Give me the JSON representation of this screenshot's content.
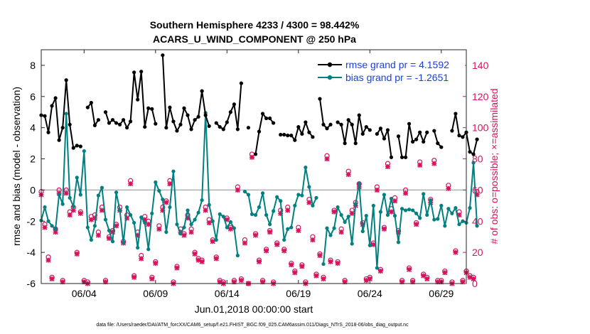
{
  "chart_data": {
    "type": "line",
    "title_line1": "Southern Hemisphere 4233 / 4300 = 98.442%",
    "title_line2": "ACARS_U_WIND_COMPONENT @ 250 hPa",
    "xlabel": "Jun.01,2018 00:00:00 start",
    "ylabel_left": "rmse and bias (model - observation)",
    "ylabel_right": "# of obs: o=possible; ×=assimilated",
    "footnote": "data file: /Users/raeder/DAI/ATM_forcXX/CAM6_setup/f.e21.FHIST_BGC.f09_025.CAM6assim.011/Diags_NTrS_2018-06/obs_diag_output.nc",
    "xlim": [
      1.0,
      30.75
    ],
    "ylim_left": [
      -6,
      9
    ],
    "ylim_right": [
      0,
      150
    ],
    "x_ticks": [
      4,
      9,
      14,
      19,
      24,
      29
    ],
    "x_tick_labels": [
      "06/04",
      "06/09",
      "06/14",
      "06/19",
      "06/24",
      "06/29"
    ],
    "y_ticks_left": [
      -6,
      -4,
      -2,
      0,
      2,
      4,
      6,
      8
    ],
    "y_tick_labels_left": [
      "-6",
      "-4",
      "-2",
      "0",
      "2",
      "4",
      "6",
      "8"
    ],
    "y_ticks_right": [
      0,
      20,
      40,
      60,
      80,
      100,
      120,
      140
    ],
    "y_tick_labels_right": [
      "0",
      "20",
      "40",
      "60",
      "80",
      "100",
      "120",
      "140"
    ],
    "zero_line": 0,
    "x_start": 1.0,
    "x_step": 0.25,
    "series": [
      {
        "name": "rmse grand pr = 4.1592",
        "color": "#000000",
        "axis": "left",
        "values": [
          4.8,
          4.75,
          3.7,
          5.4,
          5.9,
          3.2,
          4.0,
          7.05,
          4.2,
          2.7,
          2.85,
          2.8,
          null,
          5.3,
          5.6,
          4.15,
          4.5,
          null,
          5.0,
          4.3,
          4.5,
          4.3,
          4.2,
          4.5,
          4.0,
          4.4,
          7.55,
          5.8,
          7.6,
          4.05,
          5.25,
          5.2,
          4.25,
          null,
          8.65,
          4.0,
          5.3,
          4.4,
          3.8,
          4.2,
          5.25,
          4.8,
          3.9,
          4.5,
          4.7,
          6.35,
          4.8,
          4.1,
          null,
          4.3,
          4.05,
          3.9,
          4.35,
          5.0,
          5.5,
          3.9,
          6.85,
          null,
          4.0,
          null,
          2.3,
          3.75,
          4.9,
          4.6,
          4.6,
          4.3,
          null,
          3.55,
          3.55,
          3.5,
          3.5,
          3.2,
          4.05,
          3.6,
          4.35,
          3.7,
          3.4,
          null,
          5.85,
          4.2,
          3.95,
          4.2,
          null,
          4.35,
          4.2,
          3.0,
          4.5,
          4.2,
          3.0,
          4.8,
          3.6,
          4.05,
          3.85,
          null,
          3.6,
          3.95,
          3.3,
          3.85,
          2.1,
          null,
          3.45,
          2.1,
          2.1,
          4.25,
          3.1,
          3.25,
          3.7,
          3.1,
          3.7,
          null,
          3.8,
          3.0,
          2.75,
          null,
          null,
          3.8,
          4.9,
          3.5,
          3.4,
          3.7,
          2.45,
          2.3,
          3.25
        ]
      },
      {
        "name": "bias grand pr = -1.2651",
        "color": "#008080",
        "axis": "left",
        "values": [
          -1.95,
          -1.1,
          -2.0,
          -2.3,
          -2.5,
          -0.3,
          -0.9,
          4.9,
          -0.5,
          -1.05,
          0.8,
          -0.3,
          2.5,
          -2.4,
          -3.2,
          -2.3,
          -0.35,
          0.15,
          -1.9,
          -2.6,
          -3.3,
          -0.15,
          -1.3,
          -3.4,
          -1.1,
          -1.6,
          -2.1,
          -3.7,
          -1.75,
          -2.1,
          -3.8,
          -1.5,
          0.5,
          -0.05,
          -0.6,
          -2.7,
          -1.1,
          1.2,
          -2.2,
          -2.8,
          -2.4,
          -1.3,
          -2.2,
          -1.9,
          -1.45,
          -0.65,
          4.95,
          -0.95,
          -2.0,
          -3.2,
          -1.55,
          -1.7,
          -2.4,
          -2.05,
          -2.45,
          -4.2,
          null,
          -0.1,
          -0.3,
          -1.55,
          -1.6,
          -1.1,
          -0.2,
          -1.6,
          -2.2,
          -1.35,
          -0.45,
          -0.7,
          -3.2,
          -2.5,
          -2.4,
          -1.0,
          -0.3,
          -0.35,
          1.45,
          0.2,
          -1.0,
          -0.5,
          null,
          -4.75,
          -2.45,
          -2.9,
          -2.45,
          -1.1,
          -1.6,
          -2.05,
          -1.7,
          -3.45,
          -0.9,
          0.4,
          -2.65,
          -1.65,
          -3.55,
          -1.0,
          -5.0,
          -1.4,
          -0.3,
          -1.6,
          -0.55,
          -1.65,
          -3.35,
          -1.2,
          -1.3,
          -1.25,
          -1.3,
          -1.5,
          -1.8,
          -0.25,
          -1.6,
          -0.65,
          -1.9,
          -1.85,
          -1.0,
          -2.3,
          -1.2,
          -1.5,
          -1.15,
          -2.2,
          -2.0,
          -2.1,
          -1.15,
          1.75,
          -2.3
        ]
      },
      {
        "name": "# possible (o)",
        "color": "#d6125c",
        "axis": "right",
        "marker": "o",
        "values": [
          59,
          38,
          17,
          4,
          35,
          60,
          2,
          60,
          46,
          49,
          20,
          46,
          2,
          1,
          43,
          44,
          33,
          49,
          2,
          30,
          34,
          38,
          49,
          27,
          44,
          66,
          5,
          33,
          18,
          43,
          40,
          4,
          14,
          37,
          49,
          53,
          66,
          1,
          11,
          35,
          32,
          44,
          35,
          20,
          16,
          15,
          49,
          41,
          28,
          17,
          2,
          1,
          42,
          36,
          2,
          62,
          3,
          28,
          0,
          83,
          32,
          15,
          2,
          22,
          34,
          1,
          26,
          47,
          22,
          49,
          13,
          8,
          36,
          12,
          1,
          54,
          30,
          6,
          19,
          4,
          82,
          15,
          47,
          14,
          35,
          2,
          72,
          47,
          52,
          64,
          39,
          3,
          4,
          26,
          62,
          9,
          36,
          77,
          48,
          55,
          34,
          2,
          60,
          10,
          2,
          39,
          78,
          6,
          4,
          54,
          79,
          2,
          2,
          8,
          63,
          1,
          21,
          46,
          2,
          8,
          5,
          4,
          59
        ]
      },
      {
        "name": "# assimilated (×)",
        "color": "#d6125c",
        "axis": "right",
        "marker": "x",
        "values": [
          57,
          36,
          15,
          3,
          33,
          58,
          1,
          58,
          44,
          47,
          19,
          45,
          1,
          0,
          41,
          42,
          31,
          47,
          1,
          29,
          33,
          37,
          47,
          26,
          42,
          64,
          4,
          31,
          16,
          41,
          38,
          3,
          13,
          35,
          47,
          52,
          64,
          0,
          10,
          33,
          31,
          42,
          33,
          19,
          15,
          14,
          47,
          39,
          27,
          16,
          1,
          0,
          41,
          35,
          1,
          60,
          2,
          26,
          0,
          81,
          31,
          14,
          1,
          21,
          33,
          0,
          25,
          45,
          21,
          47,
          12,
          7,
          34,
          11,
          0,
          52,
          28,
          5,
          18,
          3,
          80,
          14,
          46,
          13,
          33,
          1,
          70,
          45,
          50,
          62,
          38,
          2,
          3,
          25,
          60,
          8,
          35,
          75,
          46,
          53,
          33,
          1,
          58,
          9,
          1,
          38,
          76,
          5,
          3,
          52,
          77,
          1,
          1,
          7,
          61,
          0,
          20,
          44,
          1,
          7,
          4,
          3,
          57
        ]
      }
    ]
  }
}
